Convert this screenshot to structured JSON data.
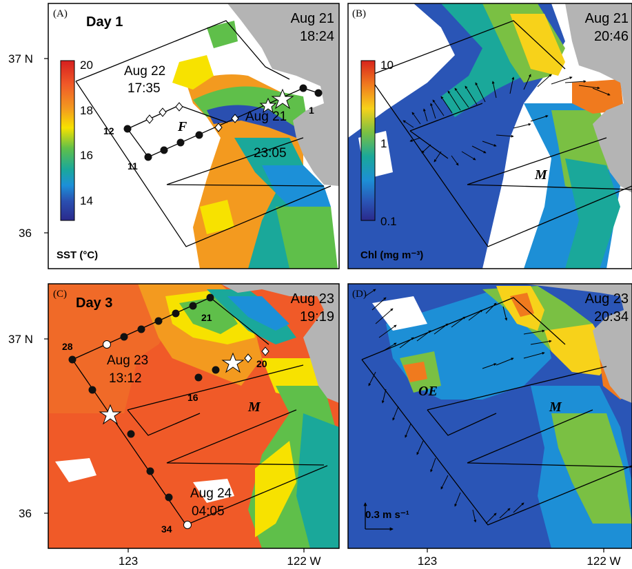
{
  "axes": {
    "lat_labels": [
      "37 N",
      "36"
    ],
    "lon_labels": [
      "123",
      "122 W"
    ]
  },
  "panels": {
    "A": {
      "label": "(A)",
      "title": "Day 1",
      "date": "Aug 21",
      "time": "18:24",
      "colorbar": {
        "label": "SST  (°C)",
        "ticks": [
          "20",
          "18",
          "16",
          "14"
        ],
        "range": [
          13,
          20
        ]
      },
      "annotations": [
        {
          "text": "Aug 22"
        },
        {
          "text": "17:35"
        },
        {
          "text": "Aug 21"
        },
        {
          "text": "23:05"
        },
        {
          "text": "F"
        }
      ],
      "station_labels": [
        "12",
        "11",
        "1"
      ]
    },
    "B": {
      "label": "(B)",
      "date": "Aug 21",
      "time": "20:46",
      "colorbar": {
        "label": "Chl (mg m⁻³)",
        "ticks": [
          "10",
          "1",
          "0.1"
        ],
        "range": [
          0.1,
          10
        ],
        "scale": "log"
      },
      "annotations": [
        {
          "text": "M"
        }
      ]
    },
    "C": {
      "label": "(C)",
      "title": "Day 3",
      "date": "Aug 23",
      "time": "19:19",
      "annotations": [
        {
          "text": "Aug 23"
        },
        {
          "text": "13:12"
        },
        {
          "text": "Aug 24"
        },
        {
          "text": "04:05"
        },
        {
          "text": "M"
        }
      ],
      "station_labels": [
        "21",
        "28",
        "20",
        "16",
        "34"
      ]
    },
    "D": {
      "label": "(D)",
      "date": "Aug 23",
      "time": "20:34",
      "annotations": [
        {
          "text": "OE"
        },
        {
          "text": "M"
        }
      ],
      "scale_label": "0.3 m s⁻¹"
    }
  },
  "colors": {
    "land": "#b4b4b4",
    "cloud": "#ffffff",
    "sst_warm": "#f07a2a",
    "sst_cool": "#3ab7d8",
    "chl_low": "#1e4fb8",
    "chl_high": "#e84a1c"
  }
}
